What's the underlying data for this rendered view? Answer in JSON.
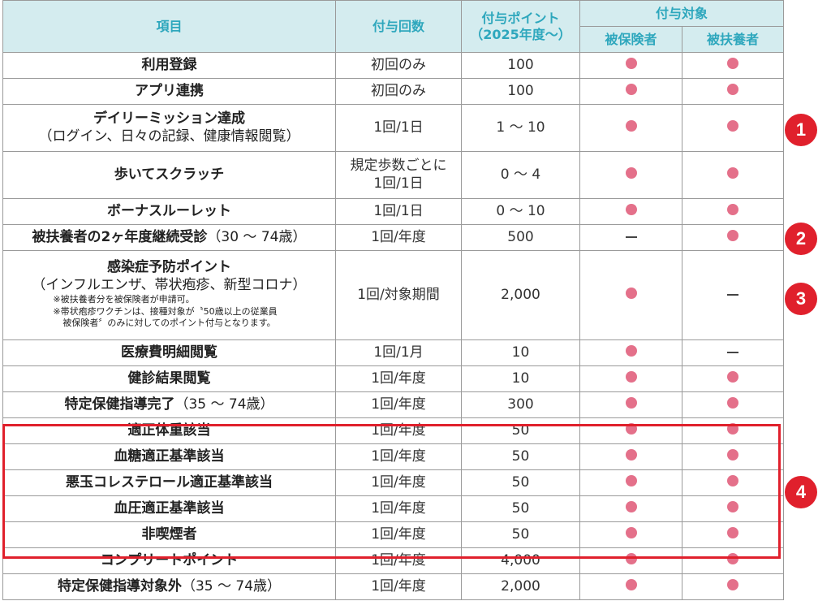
{
  "header": {
    "item": "項目",
    "count": "付与回数",
    "points_line1": "付与ポイント",
    "points_line2": "（2025年度〜）",
    "target": "付与対象",
    "insured": "被保険者",
    "dependent": "被扶養者"
  },
  "rows": [
    {
      "item": "利用登録",
      "count": "初回のみ",
      "points": "100",
      "insured": "dot",
      "dependent": "dot"
    },
    {
      "item": "アプリ連携",
      "count": "初回のみ",
      "points": "100",
      "insured": "dot",
      "dependent": "dot"
    },
    {
      "item": "デイリーミッション達成",
      "sub": "（ログイン、日々の記録、健康情報閲覧）",
      "count": "1回/1日",
      "points": "1 〜 10",
      "insured": "dot",
      "dependent": "dot"
    },
    {
      "item": "歩いてスクラッチ",
      "count_line1": "規定歩数ごとに",
      "count_line2": "1回/1日",
      "points": "0 〜 4",
      "insured": "dot",
      "dependent": "dot"
    },
    {
      "item": "ボーナスルーレット",
      "count": "1回/1日",
      "points": "0 〜 10",
      "insured": "dot",
      "dependent": "dot"
    },
    {
      "item": "被扶養者の2ヶ年度継続受診",
      "item_suffix": "（30 〜 74歳）",
      "count": "1回/年度",
      "points": "500",
      "insured": "dash",
      "dependent": "dot"
    },
    {
      "item": "感染症予防ポイント",
      "sub": "（インフルエンザ、帯状疱疹、新型コロナ）",
      "note1": "※被扶養者分を被保険者が申請可。",
      "note2": "※帯状疱疹ワクチンは、接種対象が〝50歳以上の従業員",
      "note3": "被保険者〞のみに対してのポイント付与となります。",
      "count": "1回/対象期間",
      "points": "2,000",
      "insured": "dot",
      "dependent": "dash"
    },
    {
      "item": "医療費明細閲覧",
      "count": "1回/1月",
      "points": "10",
      "insured": "dot",
      "dependent": "dash"
    },
    {
      "item": "健診結果閲覧",
      "count": "1回/年度",
      "points": "10",
      "insured": "dot",
      "dependent": "dot"
    },
    {
      "item": "特定保健指導完了",
      "item_suffix": "（35 〜 74歳）",
      "count": "1回/年度",
      "points": "300",
      "insured": "dot",
      "dependent": "dot"
    },
    {
      "item": "適正体重該当",
      "count": "1回/年度",
      "points": "50",
      "insured": "dot",
      "dependent": "dot"
    },
    {
      "item": "血糖適正基準該当",
      "count": "1回/年度",
      "points": "50",
      "insured": "dot",
      "dependent": "dot"
    },
    {
      "item": "悪玉コレステロール適正基準該当",
      "count": "1回/年度",
      "points": "50",
      "insured": "dot",
      "dependent": "dot"
    },
    {
      "item": "血圧適正基準該当",
      "count": "1回/年度",
      "points": "50",
      "insured": "dot",
      "dependent": "dot"
    },
    {
      "item": "非喫煙者",
      "count": "1回/年度",
      "points": "50",
      "insured": "dot",
      "dependent": "dot"
    },
    {
      "item": "コンプリートポイント",
      "count": "1回/年度",
      "points": "4,000",
      "insured": "dot",
      "dependent": "dot"
    },
    {
      "item": "特定保健指導対象外",
      "item_suffix": "（35 〜 74歳）",
      "count": "1回/年度",
      "points": "2,000",
      "insured": "dot",
      "dependent": "dot"
    }
  ],
  "badges": [
    "1",
    "2",
    "3",
    "4"
  ],
  "colors": {
    "header_bg": "#d4ecef",
    "header_text": "#2ea7bd",
    "dot": "#e4708a",
    "highlight": "#e0202c"
  }
}
